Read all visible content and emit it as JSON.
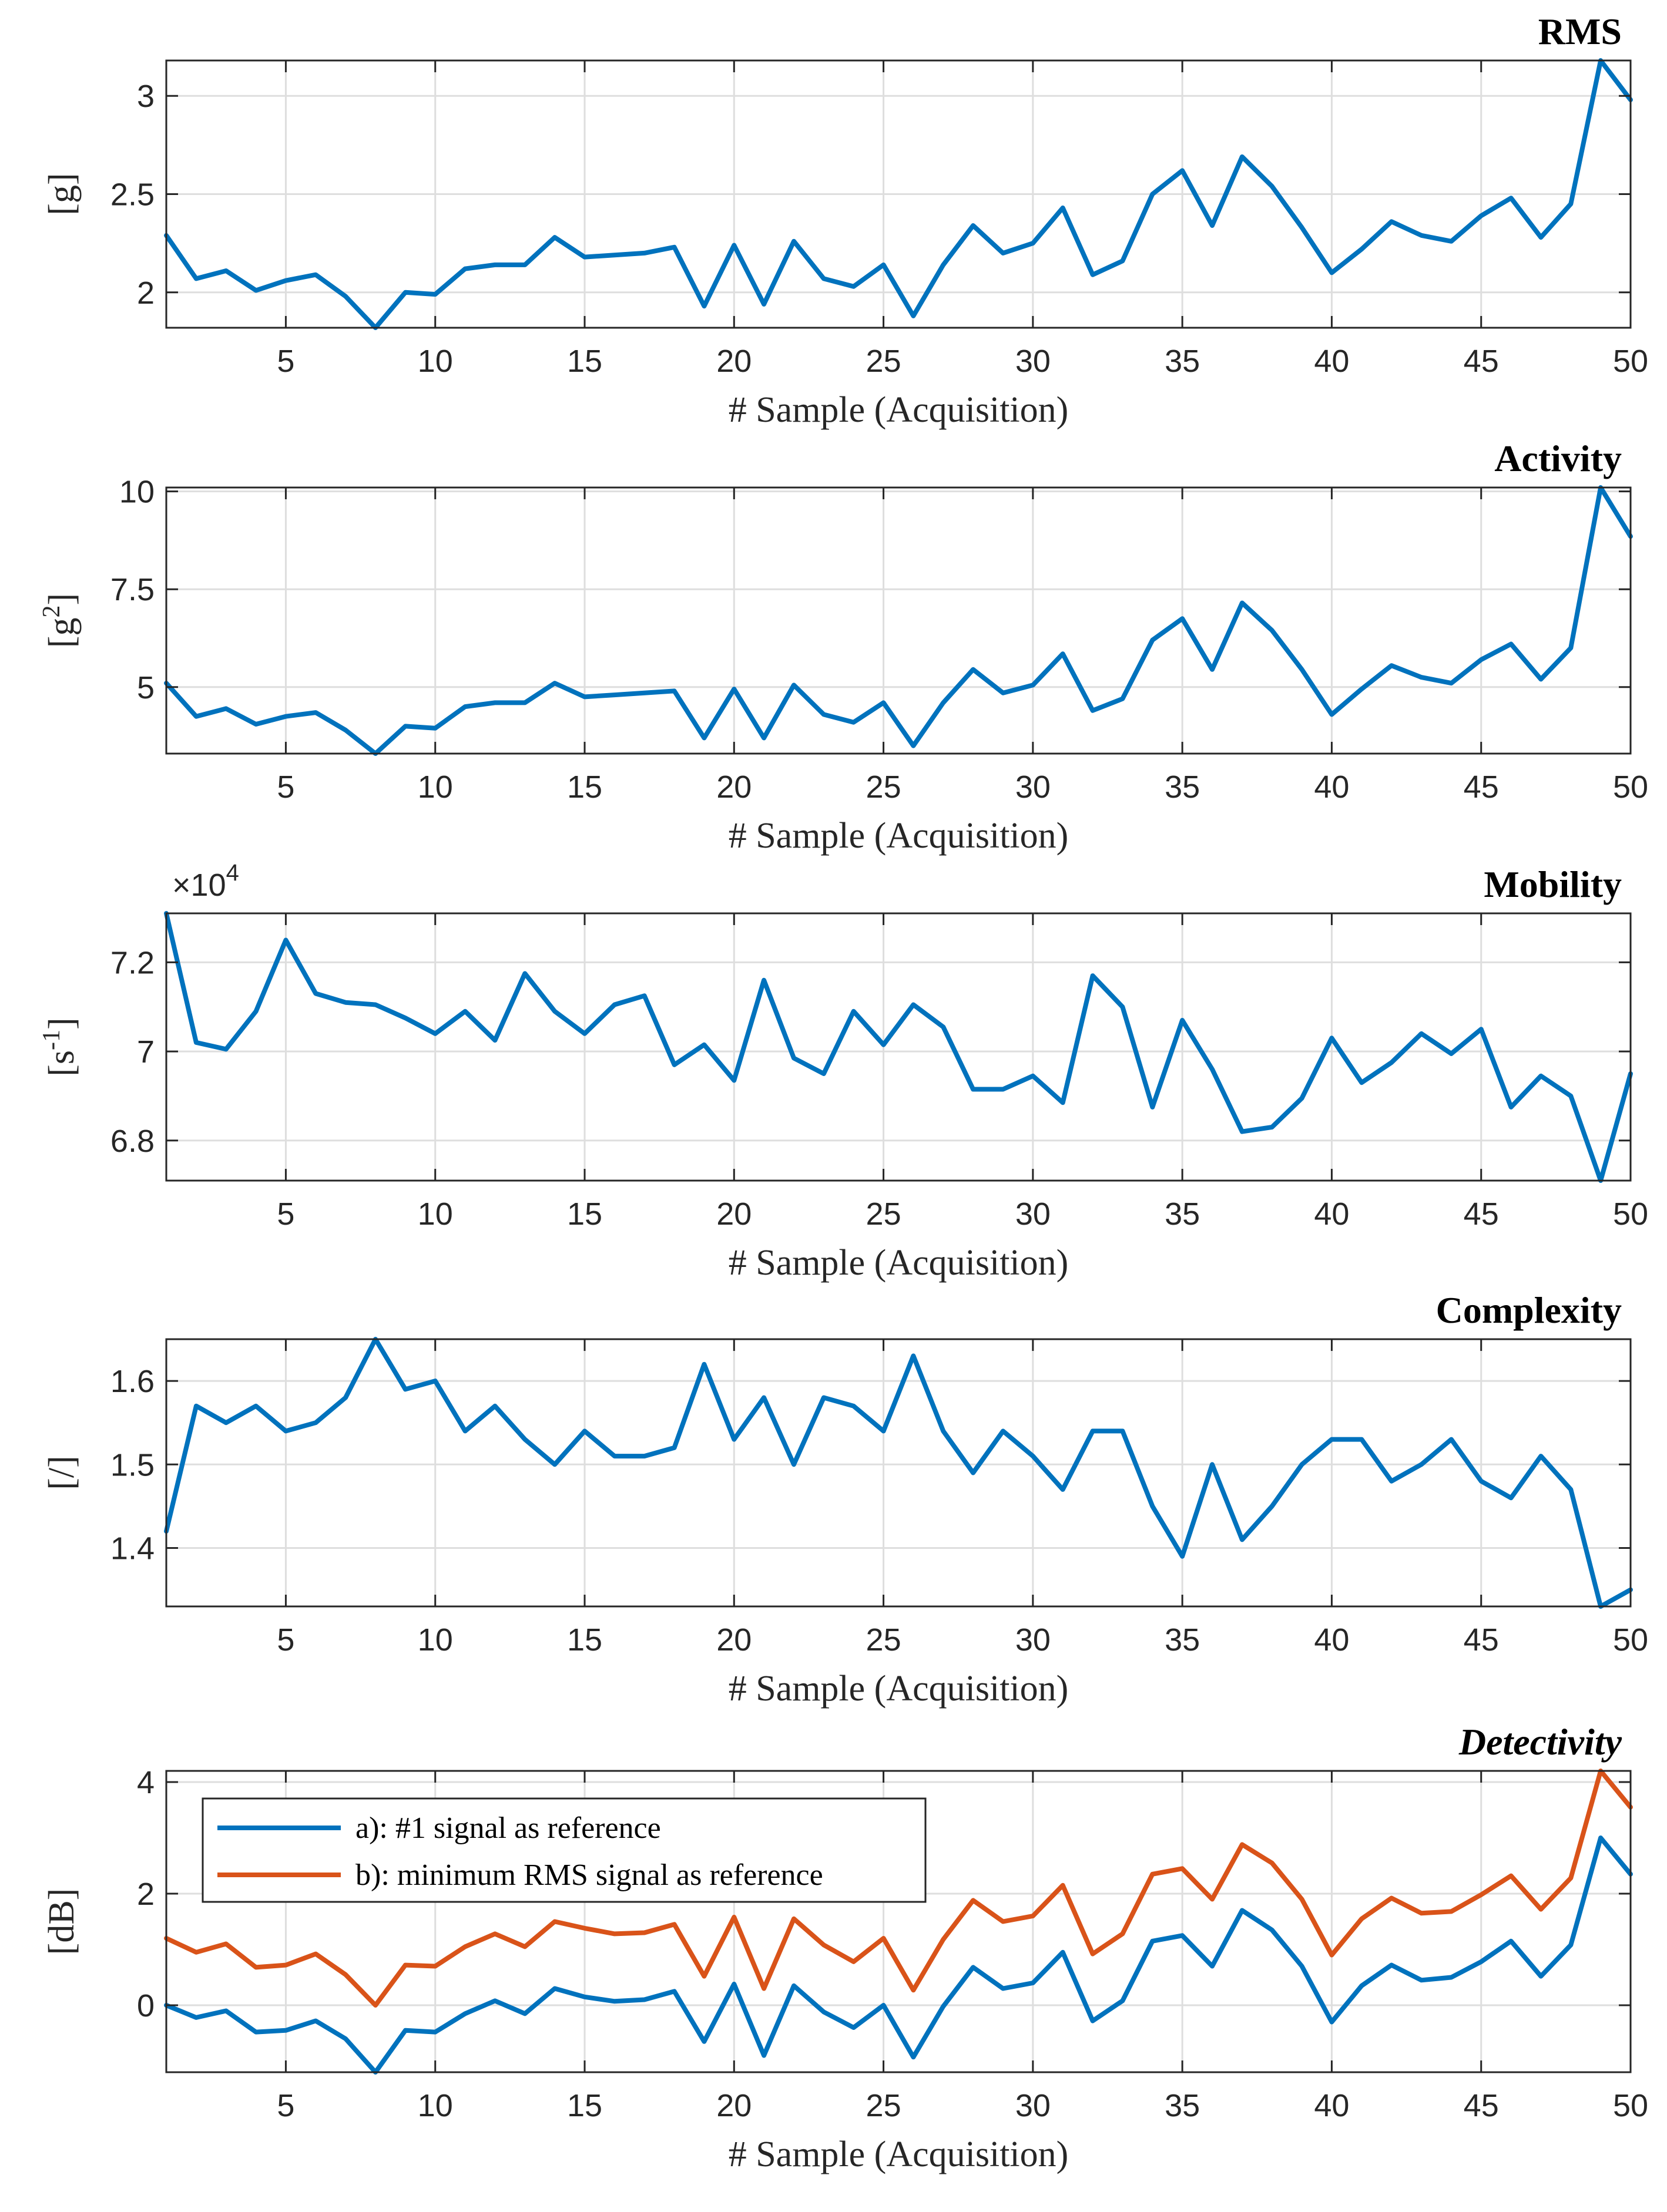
{
  "chart_data": [
    {
      "type": "line",
      "title": "RMS",
      "title_italic": false,
      "xlabel": "# Sample (Acquisition)",
      "ylabel": "[g]",
      "ylabel_sup": "",
      "ylabel_suffix": "",
      "xlim": [
        1,
        50
      ],
      "ylim": [
        1.82,
        3.18
      ],
      "xticks": [
        5,
        10,
        15,
        20,
        25,
        30,
        35,
        40,
        45,
        50
      ],
      "yticks": [
        2,
        2.5,
        3
      ],
      "ytick_labels": [
        "2",
        "2.5",
        "3"
      ],
      "exponent_label": "",
      "grid": true,
      "series": [
        {
          "name": "RMS",
          "color": "#0072BD",
          "values": [
            2.29,
            2.07,
            2.11,
            2.01,
            2.06,
            2.09,
            1.98,
            1.82,
            2.0,
            1.99,
            2.12,
            2.14,
            2.14,
            2.28,
            2.18,
            2.19,
            2.2,
            2.23,
            1.93,
            2.24,
            1.94,
            2.26,
            2.07,
            2.03,
            2.14,
            1.88,
            2.14,
            2.34,
            2.2,
            2.25,
            2.43,
            2.09,
            2.16,
            2.5,
            2.62,
            2.34,
            2.69,
            2.54,
            2.33,
            2.1,
            2.22,
            2.36,
            2.29,
            2.26,
            2.39,
            2.48,
            2.28,
            2.45,
            3.18,
            2.98
          ]
        }
      ]
    },
    {
      "type": "line",
      "title": "Activity",
      "title_italic": false,
      "xlabel": "# Sample (Acquisition)",
      "ylabel": "[g",
      "ylabel_sup": "2",
      "ylabel_suffix": "]",
      "xlim": [
        1,
        50
      ],
      "ylim": [
        3.3,
        10.1
      ],
      "xticks": [
        5,
        10,
        15,
        20,
        25,
        30,
        35,
        40,
        45,
        50
      ],
      "yticks": [
        5,
        7.5,
        10
      ],
      "ytick_labels": [
        "5",
        "7.5",
        "10"
      ],
      "exponent_label": "",
      "grid": true,
      "series": [
        {
          "name": "Activity",
          "color": "#0072BD",
          "values": [
            5.1,
            4.25,
            4.45,
            4.05,
            4.25,
            4.35,
            3.9,
            3.3,
            4.0,
            3.95,
            4.5,
            4.6,
            4.6,
            5.1,
            4.75,
            4.8,
            4.85,
            4.9,
            3.7,
            4.95,
            3.7,
            5.05,
            4.3,
            4.1,
            4.6,
            3.5,
            4.6,
            5.45,
            4.85,
            5.05,
            5.85,
            4.4,
            4.7,
            6.2,
            6.75,
            5.45,
            7.15,
            6.45,
            5.45,
            4.3,
            4.95,
            5.55,
            5.25,
            5.1,
            5.7,
            6.1,
            5.2,
            6.0,
            10.1,
            8.85
          ]
        }
      ]
    },
    {
      "type": "line",
      "title": "Mobility",
      "title_italic": false,
      "xlabel": "# Sample (Acquisition)",
      "ylabel": "[s",
      "ylabel_sup": "-1",
      "ylabel_suffix": "]",
      "xlim": [
        1,
        50
      ],
      "ylim": [
        67100,
        73100
      ],
      "xticks": [
        5,
        10,
        15,
        20,
        25,
        30,
        35,
        40,
        45,
        50
      ],
      "yticks": [
        68000,
        70000,
        72000
      ],
      "ytick_labels": [
        "6.8",
        "7",
        "7.2"
      ],
      "exponent_label": "×10",
      "exponent_sup": "4",
      "grid": true,
      "series": [
        {
          "name": "Mobility",
          "color": "#0072BD",
          "values": [
            73100,
            70200,
            70050,
            70900,
            72500,
            71300,
            71100,
            71050,
            70750,
            70400,
            70900,
            70250,
            71750,
            70900,
            70400,
            71050,
            71250,
            69700,
            70150,
            69350,
            71600,
            69850,
            69500,
            70900,
            70150,
            71050,
            70550,
            69150,
            69150,
            69450,
            68850,
            71700,
            71000,
            68750,
            70700,
            69600,
            68200,
            68300,
            68950,
            70300,
            69300,
            69750,
            70400,
            69950,
            70500,
            68750,
            69450,
            69000,
            67100,
            69500
          ]
        }
      ]
    },
    {
      "type": "line",
      "title": "Complexity",
      "title_italic": false,
      "xlabel": "# Sample (Acquisition)",
      "ylabel": "[/]",
      "ylabel_sup": "",
      "ylabel_suffix": "",
      "xlim": [
        1,
        50
      ],
      "ylim": [
        1.33,
        1.65
      ],
      "xticks": [
        5,
        10,
        15,
        20,
        25,
        30,
        35,
        40,
        45,
        50
      ],
      "yticks": [
        1.4,
        1.5,
        1.6
      ],
      "ytick_labels": [
        "1.4",
        "1.5",
        "1.6"
      ],
      "exponent_label": "",
      "grid": true,
      "series": [
        {
          "name": "Complexity",
          "color": "#0072BD",
          "values": [
            1.42,
            1.57,
            1.55,
            1.57,
            1.54,
            1.55,
            1.58,
            1.65,
            1.59,
            1.6,
            1.54,
            1.57,
            1.53,
            1.5,
            1.54,
            1.51,
            1.51,
            1.52,
            1.62,
            1.53,
            1.58,
            1.5,
            1.58,
            1.57,
            1.54,
            1.63,
            1.54,
            1.49,
            1.54,
            1.51,
            1.47,
            1.54,
            1.54,
            1.45,
            1.39,
            1.5,
            1.41,
            1.45,
            1.5,
            1.53,
            1.53,
            1.48,
            1.5,
            1.53,
            1.48,
            1.46,
            1.51,
            1.47,
            1.33,
            1.35
          ]
        }
      ]
    },
    {
      "type": "line",
      "title": "Detectivity",
      "title_italic": true,
      "xlabel": "# Sample (Acquisition)",
      "ylabel": "[dB]",
      "ylabel_sup": "",
      "ylabel_suffix": "",
      "xlim": [
        1,
        50
      ],
      "ylim": [
        -1.2,
        4.2
      ],
      "xticks": [
        5,
        10,
        15,
        20,
        25,
        30,
        35,
        40,
        45,
        50
      ],
      "yticks": [
        0,
        2,
        4
      ],
      "ytick_labels": [
        "0",
        "2",
        "4"
      ],
      "exponent_label": "",
      "grid": true,
      "legend_position": "top-left",
      "series": [
        {
          "name": "a): #1 signal as reference",
          "color": "#0072BD",
          "values": [
            0.0,
            -0.22,
            -0.1,
            -0.48,
            -0.45,
            -0.28,
            -0.6,
            -1.2,
            -0.45,
            -0.48,
            -0.15,
            0.08,
            -0.15,
            0.3,
            0.15,
            0.07,
            0.1,
            0.25,
            -0.65,
            0.38,
            -0.9,
            0.35,
            -0.12,
            -0.4,
            0.0,
            -0.93,
            -0.02,
            0.68,
            0.3,
            0.4,
            0.95,
            -0.28,
            0.08,
            1.15,
            1.25,
            0.7,
            1.7,
            1.35,
            0.7,
            -0.3,
            0.35,
            0.72,
            0.45,
            0.5,
            0.78,
            1.15,
            0.52,
            1.08,
            3.0,
            2.35
          ]
        },
        {
          "name": "b): minimum RMS signal as reference",
          "color": "#D95319",
          "values": [
            1.2,
            0.95,
            1.1,
            0.68,
            0.72,
            0.92,
            0.55,
            0.0,
            0.72,
            0.7,
            1.05,
            1.28,
            1.05,
            1.5,
            1.38,
            1.28,
            1.3,
            1.45,
            0.52,
            1.58,
            0.3,
            1.55,
            1.08,
            0.78,
            1.2,
            0.27,
            1.18,
            1.88,
            1.5,
            1.6,
            2.15,
            0.92,
            1.28,
            2.35,
            2.45,
            1.9,
            2.88,
            2.55,
            1.9,
            0.9,
            1.55,
            1.92,
            1.65,
            1.68,
            1.98,
            2.32,
            1.72,
            2.28,
            4.2,
            3.55
          ]
        }
      ]
    }
  ]
}
